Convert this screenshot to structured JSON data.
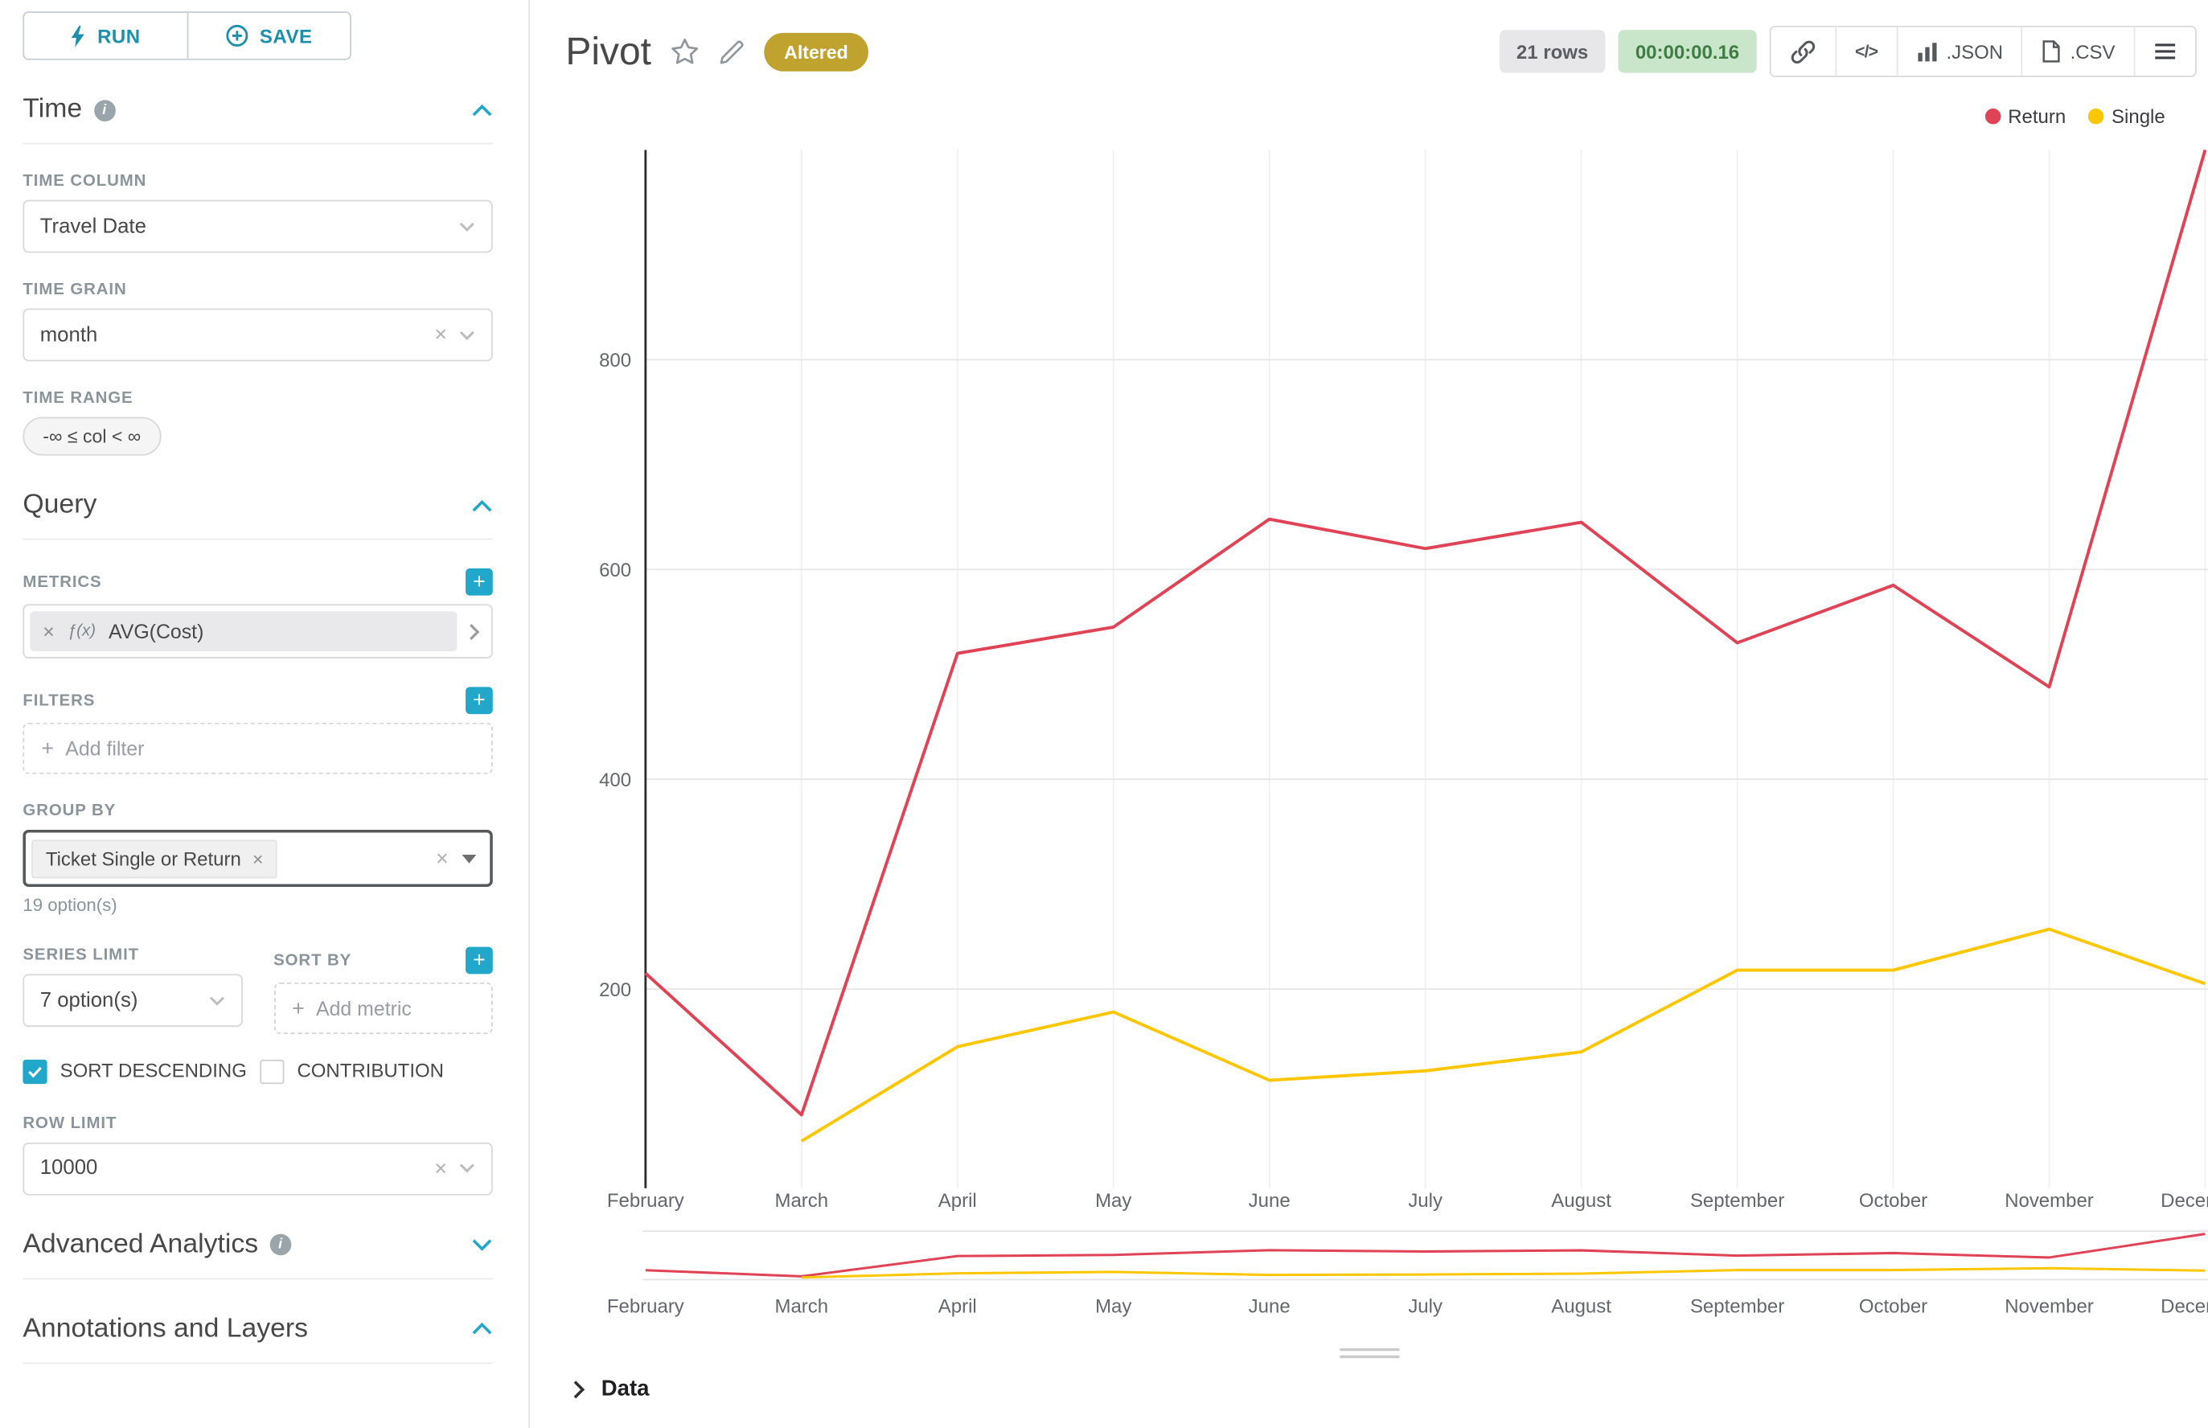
{
  "colors": {
    "accent": "#20a7c9",
    "altered_badge": "#c0a22f"
  },
  "icons": {
    "info": "i",
    "remove": "×",
    "plus": "+",
    "code": "</>"
  },
  "sidebar": {
    "run_label": "RUN",
    "save_label": "SAVE",
    "time": {
      "heading": "Time",
      "column_label": "TIME COLUMN",
      "column_value": "Travel Date",
      "grain_label": "TIME GRAIN",
      "grain_value": "month",
      "range_label": "TIME RANGE",
      "range_value": "-∞ ≤ col < ∞"
    },
    "query": {
      "heading": "Query",
      "metrics_label": "METRICS",
      "metric_prefix": "ƒ(x)",
      "metric_value": "AVG(Cost)",
      "filters_label": "FILTERS",
      "add_filter_label": "Add filter",
      "group_by_label": "GROUP BY",
      "group_by_tag": "Ticket Single or Return",
      "group_by_hint": "19 option(s)",
      "series_limit_label": "SERIES LIMIT",
      "series_limit_value": "7 option(s)",
      "sort_by_label": "SORT BY",
      "add_metric_label": "Add metric",
      "sort_descending_label": "SORT DESCENDING",
      "contribution_label": "CONTRIBUTION",
      "row_limit_label": "ROW LIMIT",
      "row_limit_value": "10000"
    },
    "advanced": {
      "heading": "Advanced Analytics"
    },
    "annotations": {
      "heading": "Annotations and Layers"
    }
  },
  "header": {
    "title": "Pivot",
    "altered_badge": "Altered",
    "rows_badge": "21 rows",
    "timer_badge": "00:00:00.16",
    "json_label": ".JSON",
    "csv_label": ".CSV"
  },
  "footer": {
    "data_label": "Data"
  },
  "chart_data": {
    "type": "line",
    "x": [
      "February",
      "March",
      "April",
      "May",
      "June",
      "July",
      "August",
      "September",
      "October",
      "November",
      "December"
    ],
    "series": [
      {
        "name": "Return",
        "color": "#e04355",
        "values": [
          215,
          80,
          520,
          545,
          648,
          620,
          645,
          530,
          585,
          488,
          1000
        ]
      },
      {
        "name": "Single",
        "color": "#fcc700",
        "values": [
          null,
          55,
          145,
          178,
          113,
          122,
          140,
          218,
          218,
          257,
          205
        ]
      }
    ],
    "title": "",
    "xlabel": "",
    "ylabel": "",
    "yticks": [
      200,
      400,
      600,
      800
    ],
    "ylim": [
      10,
      1000
    ],
    "grid": true,
    "legend_position": "top-right",
    "has_range_preview": true
  }
}
